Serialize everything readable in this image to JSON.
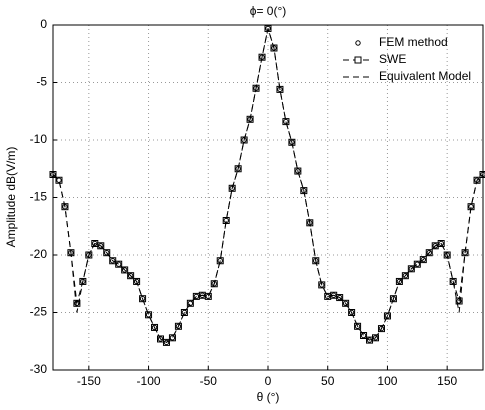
{
  "chart_data": {
    "type": "line",
    "title": "ϕ= 0(°)",
    "x_label": "θ (°)",
    "y_label": "Amplitude dB(V/m)",
    "x": [
      -180,
      -175,
      -170,
      -165,
      -160,
      -155,
      -150,
      -145,
      -140,
      -135,
      -130,
      -125,
      -120,
      -115,
      -110,
      -105,
      -100,
      -95,
      -90,
      -85,
      -80,
      -75,
      -70,
      -65,
      -60,
      -55,
      -50,
      -45,
      -40,
      -35,
      -30,
      -25,
      -20,
      -15,
      -10,
      -5,
      0,
      5,
      10,
      15,
      20,
      25,
      30,
      35,
      40,
      45,
      50,
      55,
      60,
      65,
      70,
      75,
      80,
      85,
      90,
      95,
      100,
      105,
      110,
      115,
      120,
      125,
      130,
      135,
      140,
      145,
      150,
      155,
      160,
      165,
      170,
      175,
      180
    ],
    "series": [
      {
        "name": "FEM method",
        "color": "#000000",
        "marker": "circle",
        "line": "none",
        "values": [
          -13,
          -13.5,
          -15.8,
          -19.8,
          -24.2,
          -22.3,
          -20,
          -19,
          -19.2,
          -19.8,
          -20.5,
          -20.8,
          -21.3,
          -21.8,
          -22.3,
          -23.8,
          -25.2,
          -26.3,
          -27.3,
          -27.6,
          -27.2,
          -26.2,
          -25,
          -24.2,
          -23.6,
          -23.5,
          -23.6,
          -22.5,
          -20.5,
          -17,
          -14.2,
          -12.5,
          -10,
          -8.2,
          -5.5,
          -2.8,
          -0.3,
          -2,
          -5.6,
          -8.4,
          -10.2,
          -12.7,
          -14.4,
          -17.2,
          -20.5,
          -22.6,
          -23.6,
          -23.5,
          -23.7,
          -24.2,
          -25,
          -26.2,
          -27,
          -27.4,
          -27.2,
          -26.4,
          -25.3,
          -23.8,
          -22.3,
          -21.8,
          -21.2,
          -20.8,
          -20.4,
          -19.8,
          -19.2,
          -19,
          -20,
          -22.3,
          -24,
          -19.8,
          -15.8,
          -13.5,
          -13
        ]
      },
      {
        "name": "SWE",
        "color": "#000000",
        "marker": "square",
        "line": "dashed",
        "values": [
          -13,
          -13.5,
          -15.8,
          -19.8,
          -24.2,
          -22.3,
          -20,
          -19,
          -19.2,
          -19.8,
          -20.5,
          -20.8,
          -21.3,
          -21.8,
          -22.3,
          -23.8,
          -25.2,
          -26.3,
          -27.3,
          -27.6,
          -27.2,
          -26.2,
          -25,
          -24.2,
          -23.6,
          -23.5,
          -23.6,
          -22.5,
          -20.5,
          -17,
          -14.2,
          -12.5,
          -10,
          -8.2,
          -5.5,
          -2.8,
          -0.3,
          -2,
          -5.6,
          -8.4,
          -10.2,
          -12.7,
          -14.4,
          -17.2,
          -20.5,
          -22.6,
          -23.6,
          -23.5,
          -23.7,
          -24.2,
          -25,
          -26.2,
          -27,
          -27.4,
          -27.2,
          -26.4,
          -25.3,
          -23.8,
          -22.3,
          -21.8,
          -21.2,
          -20.8,
          -20.4,
          -19.8,
          -19.2,
          -19,
          -20,
          -22.3,
          -24,
          -19.8,
          -15.8,
          -13.5,
          -13
        ]
      },
      {
        "name": "Equivalent Model",
        "color": "#000000",
        "marker": "none",
        "line": "dashed",
        "values": [
          -13,
          -13.5,
          -15.8,
          -19.8,
          -25,
          -22.3,
          -20,
          -19,
          -19.2,
          -19.8,
          -20.5,
          -20.8,
          -21.3,
          -21.8,
          -22.3,
          -23.8,
          -25.2,
          -26.3,
          -27.3,
          -27.6,
          -27.2,
          -26.2,
          -25,
          -24.2,
          -23.6,
          -23.5,
          -23.6,
          -22.5,
          -20.5,
          -17,
          -14.2,
          -12.5,
          -10,
          -8.2,
          -5.5,
          -2.8,
          -0.3,
          -2,
          -5.6,
          -8.4,
          -10.2,
          -12.7,
          -14.4,
          -17.2,
          -20.5,
          -22.6,
          -23.6,
          -23.5,
          -23.7,
          -24.2,
          -25,
          -26.2,
          -27,
          -27.4,
          -27.2,
          -26.4,
          -25.3,
          -23.8,
          -22.3,
          -21.8,
          -21.2,
          -20.8,
          -20.4,
          -19.8,
          -19.2,
          -19,
          -20,
          -22.3,
          -25,
          -19.8,
          -15.8,
          -13.5,
          -13
        ]
      }
    ],
    "xlim": [
      -180,
      180
    ],
    "xticks": [
      -150,
      -100,
      -50,
      0,
      50,
      100,
      150
    ],
    "ylim": [
      -30,
      0
    ],
    "yticks": [
      -30,
      -25,
      -20,
      -15,
      -10,
      -5,
      0
    ],
    "grid": true,
    "legend": "upper right"
  }
}
